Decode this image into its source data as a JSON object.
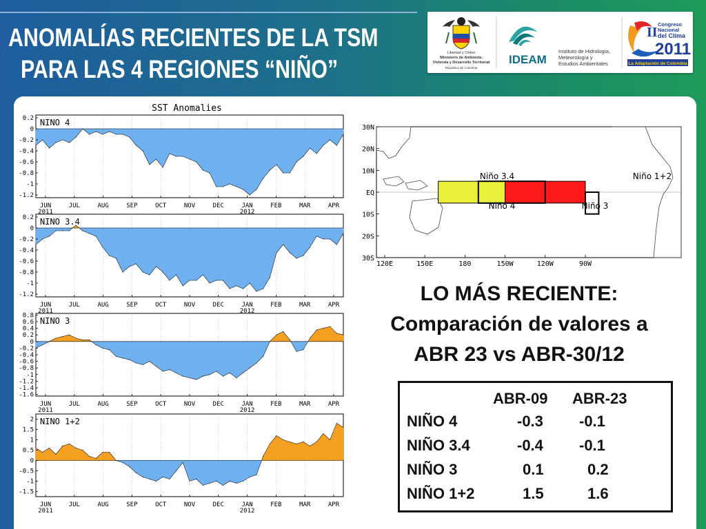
{
  "slide": {
    "title_line1": "ANOMALÍAS RECIENTES DE LA TSM",
    "title_line2": "PARA LAS 4 REGIONES “NIÑO”",
    "recent_heading": "LO MÁS RECIENTE:",
    "recent_line2": "Comparación de valores a",
    "recent_line3": "ABR 23 vs ABR-30/12"
  },
  "logos": {
    "ministerio": {
      "line1": "Libertad y Orden",
      "line2": "Ministerio de Ambiente,",
      "line3": "Vivienda y Desarrollo Territorial",
      "line4": "República de Colombia"
    },
    "ideam": {
      "name": "IDEAM",
      "line1": "Instituto de Hidrología,",
      "line2": "Meteorología y",
      "line3": "Estudios Ambientales"
    },
    "congreso": {
      "numeral": "II",
      "line1": "Congreso",
      "line2": "Nacional",
      "line3": "del Clima",
      "year": "2011",
      "tagline": "La Adaptación de Colombia"
    }
  },
  "values_table": {
    "headers": [
      "ABR-09",
      "ABR-23"
    ],
    "rows": [
      {
        "region": "NIÑO 4",
        "abr09": "-0.3",
        "abr23": "-0.1"
      },
      {
        "region": "NIÑO 3.4",
        "abr09": "-0.4",
        "abr23": "-0.1"
      },
      {
        "region": "NIÑO 3",
        "abr09": "0.1",
        "abr23": "0.2"
      },
      {
        "region": "NIÑO 1+2",
        "abr09": "1.5",
        "abr23": "1.6"
      }
    ]
  },
  "map": {
    "lat_labels": [
      "30N",
      "20N",
      "10N",
      "EQ",
      "10S",
      "20S",
      "30S"
    ],
    "lon_labels": [
      "120E",
      "150E",
      "180",
      "150W",
      "120W",
      "90W"
    ],
    "regions": [
      {
        "name": "Niño 3.4",
        "color": "none"
      },
      {
        "name": "Niño 1+2",
        "color": "none"
      },
      {
        "name": "Niño 4",
        "color": "#e8f03c"
      },
      {
        "name": "Niño 3",
        "color": "#ff1a1a"
      }
    ]
  },
  "chart_data": [
    {
      "type": "area",
      "title": "SST Anomalies",
      "label": "NINO 4",
      "x_ticks": [
        "JUN",
        "JUL",
        "AUG",
        "SEP",
        "OCT",
        "NOV",
        "DEC",
        "JAN",
        "FEB",
        "MAR",
        "APR"
      ],
      "year_labels": [
        "2011",
        "2012"
      ],
      "y_ticks": [
        "0.2",
        "0",
        "-0.2",
        "-0.4",
        "-0.6",
        "-0.8",
        "-1",
        "-1.2"
      ],
      "ylim": [
        -1.25,
        0.25
      ],
      "pos_color": "#f5a020",
      "neg_color": "#6fb0f0",
      "values": [
        -0.3,
        -0.2,
        -0.35,
        -0.25,
        -0.2,
        -0.25,
        -0.15,
        0.0,
        -0.1,
        -0.05,
        -0.1,
        -0.05,
        -0.1,
        -0.1,
        -0.15,
        -0.3,
        -0.4,
        -0.65,
        -0.55,
        -0.7,
        -0.45,
        -0.5,
        -0.5,
        -0.55,
        -0.6,
        -0.75,
        -0.8,
        -1.05,
        -1.05,
        -1.0,
        -1.05,
        -1.1,
        -1.2,
        -1.1,
        -0.9,
        -0.75,
        -0.65,
        -0.8,
        -0.8,
        -0.6,
        -0.5,
        -0.35,
        -0.45,
        -0.3,
        -0.2,
        -0.3,
        -0.1
      ]
    },
    {
      "type": "area",
      "label": "NINO 3.4",
      "x_ticks": [
        "JUN",
        "JUL",
        "AUG",
        "SEP",
        "OCT",
        "NOV",
        "DEC",
        "JAN",
        "FEB",
        "MAR",
        "APR"
      ],
      "year_labels": [
        "2011",
        "2012"
      ],
      "y_ticks": [
        "0.2",
        "0",
        "-0.2",
        "-0.4",
        "-0.6",
        "-0.8",
        "-1",
        "-1.2"
      ],
      "ylim": [
        -1.25,
        0.25
      ],
      "pos_color": "#f5a020",
      "neg_color": "#6fb0f0",
      "values": [
        -0.3,
        -0.2,
        -0.15,
        -0.05,
        -0.05,
        -0.05,
        0.05,
        -0.05,
        -0.1,
        -0.15,
        -0.35,
        -0.5,
        -0.55,
        -0.8,
        -0.7,
        -0.65,
        -0.8,
        -0.85,
        -0.7,
        -0.8,
        -0.95,
        -0.85,
        -1.05,
        -0.95,
        -0.95,
        -0.85,
        -1.0,
        -0.95,
        -0.95,
        -1.1,
        -1.05,
        -1.1,
        -1.0,
        -1.15,
        -1.1,
        -0.9,
        -0.45,
        -0.3,
        -0.45,
        -0.55,
        -0.5,
        -0.35,
        -0.15,
        -0.2,
        -0.2,
        -0.3,
        -0.1
      ]
    },
    {
      "type": "area",
      "label": "NINO 3",
      "x_ticks": [
        "JUN",
        "JUL",
        "AUG",
        "SEP",
        "OCT",
        "NOV",
        "DEC",
        "JAN",
        "FEB",
        "MAR",
        "APR"
      ],
      "year_labels": [
        "2011",
        "2012"
      ],
      "y_ticks": [
        "0.8",
        "0.6",
        "0.4",
        "0.2",
        "0",
        "-0.2",
        "-0.4",
        "-0.6",
        "-0.8",
        "-1",
        "-1.2",
        "-1.4",
        "-1.6"
      ],
      "ylim": [
        -1.65,
        0.85
      ],
      "pos_color": "#f5a020",
      "neg_color": "#6fb0f0",
      "values": [
        -0.2,
        -0.1,
        0.0,
        0.1,
        0.15,
        0.2,
        0.1,
        0.05,
        0.05,
        -0.1,
        -0.2,
        -0.25,
        -0.45,
        -0.5,
        -0.55,
        -0.65,
        -0.7,
        -0.6,
        -0.75,
        -0.9,
        -0.85,
        -0.95,
        -1.05,
        -1.1,
        -1.15,
        -1.05,
        -1.0,
        -0.9,
        -1.05,
        -0.95,
        -1.1,
        -0.95,
        -0.8,
        -0.65,
        -0.45,
        0.0,
        0.2,
        0.3,
        0.05,
        -0.3,
        -0.25,
        0.1,
        0.35,
        0.4,
        0.45,
        0.25,
        0.2
      ]
    },
    {
      "type": "area",
      "label": "NINO 1+2",
      "x_ticks": [
        "JUN",
        "JUL",
        "AUG",
        "SEP",
        "OCT",
        "NOV",
        "DEC",
        "JAN",
        "FEB",
        "MAR",
        "APR"
      ],
      "year_labels": [
        "2011",
        "2012"
      ],
      "y_ticks": [
        "2",
        "1.5",
        "1",
        "0.5",
        "0",
        "-0.5",
        "-1",
        "-1.5"
      ],
      "ylim": [
        -1.75,
        2.25
      ],
      "pos_color": "#f5a020",
      "neg_color": "#6fb0f0",
      "values": [
        0.6,
        0.4,
        0.6,
        0.3,
        0.7,
        0.8,
        0.6,
        0.5,
        0.2,
        0.1,
        0.4,
        0.4,
        0.0,
        -0.1,
        -0.3,
        -0.6,
        -0.8,
        -0.9,
        -1.0,
        -0.8,
        -0.9,
        -0.5,
        -0.1,
        -1.0,
        -0.9,
        -1.2,
        -1.1,
        -1.0,
        -1.2,
        -1.0,
        -1.1,
        -1.0,
        -0.8,
        -0.7,
        0.2,
        0.8,
        1.2,
        1.0,
        0.9,
        0.8,
        0.9,
        0.7,
        0.9,
        1.3,
        1.0,
        1.8,
        1.6
      ]
    }
  ]
}
